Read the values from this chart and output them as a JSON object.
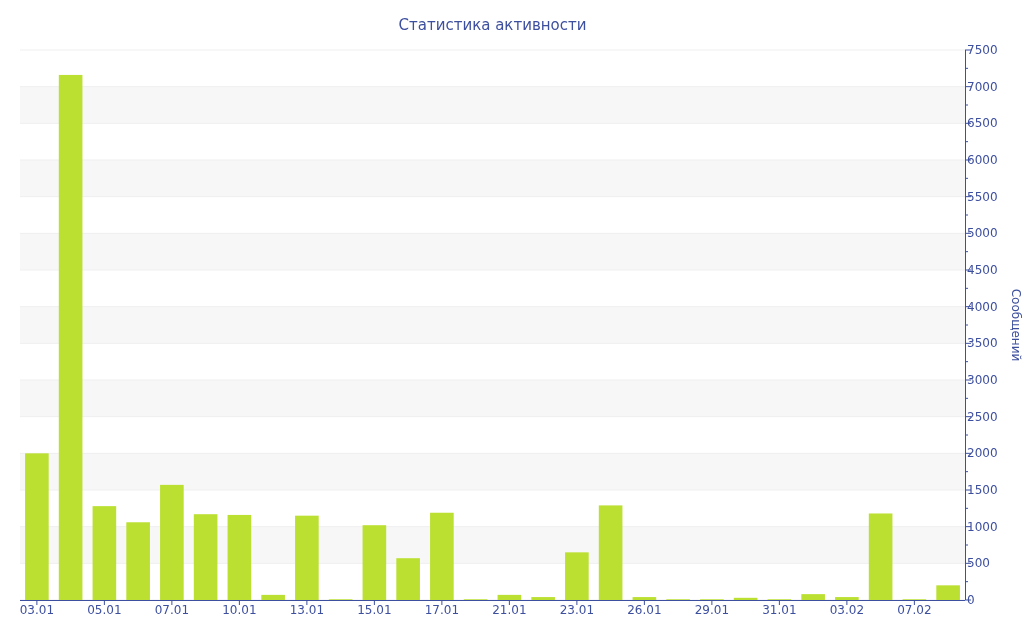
{
  "chart_data": {
    "type": "bar",
    "title": "Статистика активности",
    "ylabel": "Сообщений",
    "categories": [
      "03.01",
      null,
      "05.01",
      null,
      "07.01",
      null,
      "10.01",
      null,
      "13.01",
      null,
      "15.01",
      null,
      "17.01",
      null,
      "21.01",
      null,
      "23.01",
      null,
      "26.01",
      null,
      "29.01",
      null,
      "31.01",
      null,
      "03.02",
      null,
      "07.02",
      null
    ],
    "values": [
      2000,
      7160,
      1280,
      1060,
      1570,
      1170,
      1160,
      70,
      1150,
      10,
      1020,
      570,
      1190,
      10,
      70,
      40,
      650,
      1290,
      40,
      10,
      10,
      30,
      10,
      80,
      40,
      1180,
      10,
      200
    ],
    "color": "#bce032",
    "ylim": [
      0,
      7500
    ],
    "yticks": [
      0,
      500,
      1000,
      1500,
      2000,
      2500,
      3000,
      3500,
      4000,
      4500,
      5000,
      5500,
      6000,
      6500,
      7000,
      7500
    ],
    "grid": "y"
  }
}
